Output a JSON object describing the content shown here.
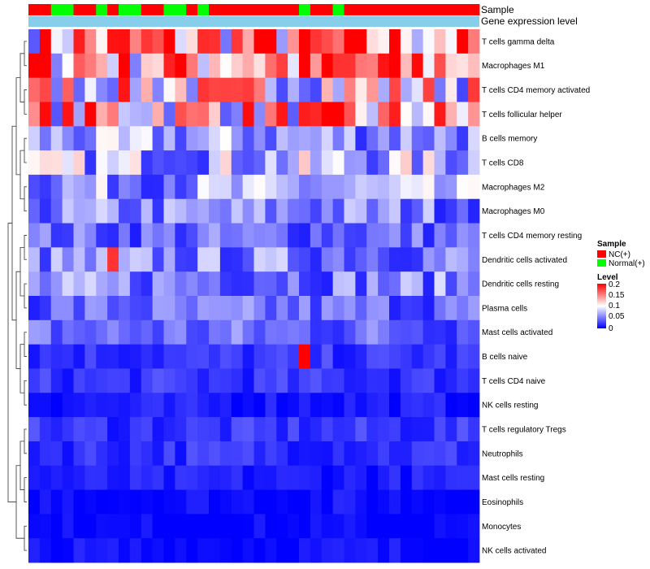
{
  "chart_data": {
    "type": "heatmap",
    "annotation_labels": [
      "Sample",
      "Gene expression level"
    ],
    "sample_groups": [
      "NC(+)",
      "NC(+)",
      "N",
      "N",
      "NC(+)",
      "NC(+)",
      "N",
      "NC(+)",
      "N",
      "N",
      "NC(+)",
      "NC(+)",
      "N",
      "N",
      "NC(+)",
      "N",
      "NC(+)",
      "NC(+)",
      "NC(+)",
      "NC(+)",
      "NC(+)",
      "NC(+)",
      "NC(+)",
      "NC(+)",
      "N",
      "NC(+)",
      "NC(+)",
      "N",
      "NC(+)",
      "NC(+)",
      "NC(+)",
      "NC(+)",
      "NC(+)",
      "NC(+)",
      "NC(+)",
      "NC(+)",
      "NC(+)",
      "NC(+)",
      "NC(+)",
      "NC(+)"
    ],
    "gene_expression_color": "#87ceeb",
    "rows": [
      "T cells gamma delta",
      "Macrophages M1",
      "T cells CD4 memory activated",
      "T cells follicular helper",
      "B cells memory",
      "T cells CD8",
      "Macrophages M2",
      "Macrophages M0",
      "T cells CD4 memory resting",
      "Dendritic cells activated",
      "Dendritic cells resting",
      "Plasma cells",
      "Mast cells activated",
      "B cells naive",
      "T cells CD4 naive",
      "NK cells resting",
      "T cells regulatory  Tregs",
      "Neutrophils",
      "Mast cells resting",
      "Eosinophils",
      "Monocytes",
      "NK cells activated"
    ],
    "row_base_values": [
      0.14,
      0.15,
      0.11,
      0.12,
      0.06,
      0.07,
      0.06,
      0.05,
      0.04,
      0.05,
      0.05,
      0.04,
      0.04,
      0.02,
      0.02,
      0.01,
      0.02,
      0.02,
      0.01,
      0.005,
      0.0,
      0.005
    ],
    "legend": {
      "sample_title": "Sample",
      "sample_entries": [
        {
          "label": "NC(+)",
          "color": "#ff0000"
        },
        {
          "label": "Normal(+)",
          "color": "#00ff00"
        }
      ],
      "level_title": "Level",
      "level_ticks": [
        "0.2",
        "0.15",
        "0.1",
        "0.05",
        "0"
      ],
      "level_range": [
        0,
        0.2
      ]
    },
    "color_scale": {
      "low": "#0000ff",
      "mid": "#ffffff",
      "high": "#ff0000",
      "mid_value": 0.1
    }
  }
}
